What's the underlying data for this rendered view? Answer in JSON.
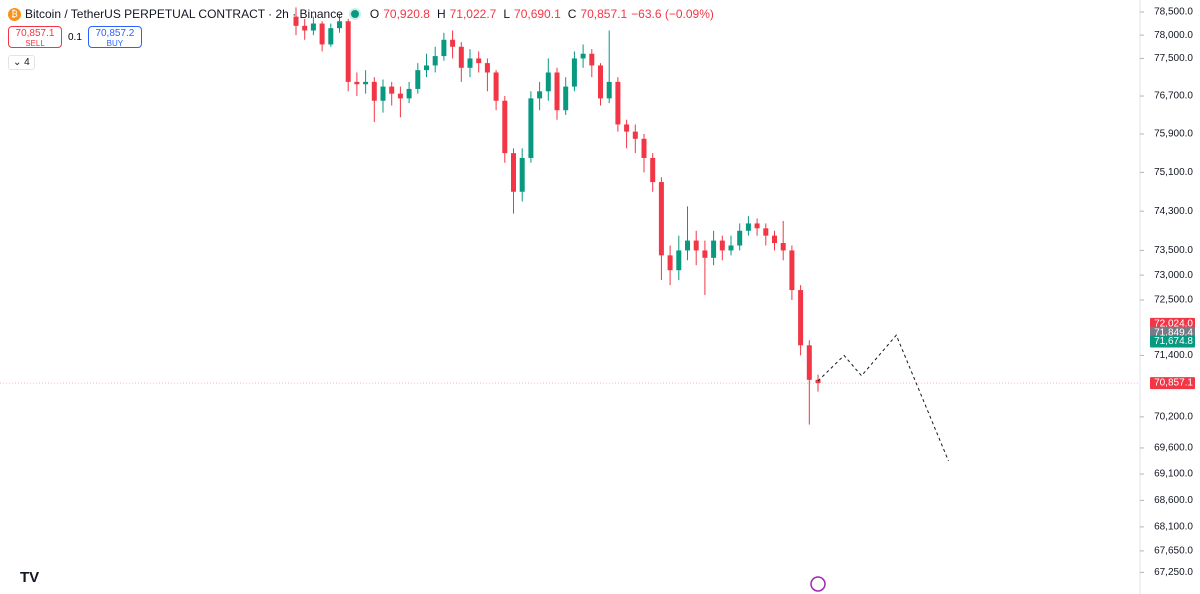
{
  "header": {
    "title": "Bitcoin / TetherUS PERPETUAL CONTRACT · 2h · Binance",
    "ohlc": [
      {
        "key": "O",
        "value": "70,920.8"
      },
      {
        "key": "H",
        "value": "71,022.7"
      },
      {
        "key": "L",
        "value": "70,690.1"
      },
      {
        "key": "C",
        "value": "70,857.1"
      }
    ],
    "change": "−63.6 (−0.09%)"
  },
  "trade": {
    "sell_price": "70,857.1",
    "sell_label": "SELL",
    "spread": "0.1",
    "buy_price": "70,857.2",
    "buy_label": "BUY"
  },
  "indicators_count": "4",
  "chart_data": {
    "type": "candlestick",
    "log_scale": true,
    "up_color": "#089981",
    "down_color": "#f23645",
    "series": [
      {
        "open": [
          78400,
          78200,
          78100,
          78250,
          77800,
          78150,
          78300,
          77000,
          76950,
          77000,
          76600,
          76900,
          76750,
          76650,
          76850,
          77250,
          77350,
          77550,
          77900,
          77750,
          77300,
          77500,
          77400,
          77200,
          76600,
          75500,
          74700,
          75400,
          76650,
          76800,
          77200,
          76400,
          76900,
          77500,
          77600,
          77350,
          76650,
          77000,
          76100,
          75950,
          75800,
          75400,
          74900,
          73400,
          73100,
          73500,
          73700,
          73500,
          73350,
          73700,
          73500,
          73600,
          73900,
          74050,
          73950,
          73800,
          73650,
          73500,
          72700,
          71600,
          70920.8
        ],
        "high": [
          78600,
          78350,
          78400,
          78300,
          78250,
          78450,
          78350,
          77200,
          77250,
          77100,
          77050,
          77000,
          76900,
          77000,
          77400,
          77600,
          77750,
          78050,
          78100,
          77850,
          77700,
          77650,
          77500,
          77250,
          76700,
          75600,
          75600,
          76800,
          77000,
          77500,
          77300,
          77100,
          77650,
          77800,
          77700,
          77400,
          78100,
          77100,
          76200,
          76100,
          75900,
          75500,
          75000,
          73600,
          73800,
          74400,
          73900,
          73700,
          73900,
          73800,
          73800,
          74050,
          74200,
          74150,
          74050,
          73900,
          74100,
          73600,
          72800,
          71700,
          71022.7
        ],
        "low": [
          78000,
          77900,
          78000,
          77650,
          77750,
          78050,
          76800,
          76700,
          76750,
          76150,
          76350,
          76500,
          76250,
          76550,
          76750,
          77100,
          77200,
          77450,
          77500,
          77000,
          77100,
          77200,
          76800,
          76400,
          75300,
          74250,
          74500,
          75300,
          76400,
          76600,
          76200,
          76300,
          76800,
          77300,
          77100,
          76500,
          76550,
          75950,
          75600,
          75500,
          75100,
          74700,
          72900,
          72800,
          72900,
          73300,
          73200,
          72600,
          73200,
          73300,
          73400,
          73500,
          73800,
          73800,
          73600,
          73500,
          73300,
          72500,
          71400,
          70050,
          70690.1
        ],
        "close": [
          78200,
          78100,
          78250,
          77800,
          78150,
          78300,
          77000,
          76950,
          77000,
          76600,
          76900,
          76750,
          76650,
          76850,
          77250,
          77350,
          77550,
          77900,
          77750,
          77300,
          77500,
          77400,
          77200,
          76600,
          75500,
          74700,
          75400,
          76650,
          76800,
          77200,
          76400,
          76900,
          77500,
          77600,
          77350,
          76650,
          77000,
          76100,
          75950,
          75800,
          75400,
          74900,
          73400,
          73100,
          73500,
          73700,
          73500,
          73350,
          73700,
          73500,
          73600,
          73900,
          74050,
          73950,
          73800,
          73650,
          73500,
          72700,
          71600,
          70920.8,
          70857.1
        ]
      }
    ],
    "projection": {
      "x": [
        60,
        63,
        65,
        69,
        75
      ],
      "y": [
        70900,
        71400,
        71000,
        71800,
        69350
      ]
    },
    "ylim": [
      66850,
      78760
    ],
    "yticks": [
      {
        "value": 78500,
        "label": "78,500.0"
      },
      {
        "value": 78000,
        "label": "78,000.0"
      },
      {
        "value": 77500,
        "label": "77,500.0"
      },
      {
        "value": 76700,
        "label": "76,700.0"
      },
      {
        "value": 75900,
        "label": "75,900.0"
      },
      {
        "value": 75100,
        "label": "75,100.0"
      },
      {
        "value": 74300,
        "label": "74,300.0"
      },
      {
        "value": 73500,
        "label": "73,500.0"
      },
      {
        "value": 73000,
        "label": "73,000.0"
      },
      {
        "value": 72500,
        "label": "72,500.0"
      },
      {
        "value": 71400,
        "label": "71,400.0"
      },
      {
        "value": 70200,
        "label": "70,200.0"
      },
      {
        "value": 69600,
        "label": "69,600.0"
      },
      {
        "value": 69100,
        "label": "69,100.0"
      },
      {
        "value": 68600,
        "label": "68,600.0"
      },
      {
        "value": 68100,
        "label": "68,100.0"
      },
      {
        "value": 67650,
        "label": "67,650.0"
      },
      {
        "value": 67250,
        "label": "67,250.0"
      }
    ],
    "price_labels": [
      {
        "value": 72024.0,
        "label": "72,024.0",
        "color": "#f23645"
      },
      {
        "value": 71849.4,
        "label": "71,849.4",
        "color": "#787b86"
      },
      {
        "value": 71674.8,
        "label": "71,674.8",
        "color": "#089981"
      },
      {
        "value": 70857.1,
        "label": "70,857.1",
        "color": "#f23645"
      }
    ]
  }
}
